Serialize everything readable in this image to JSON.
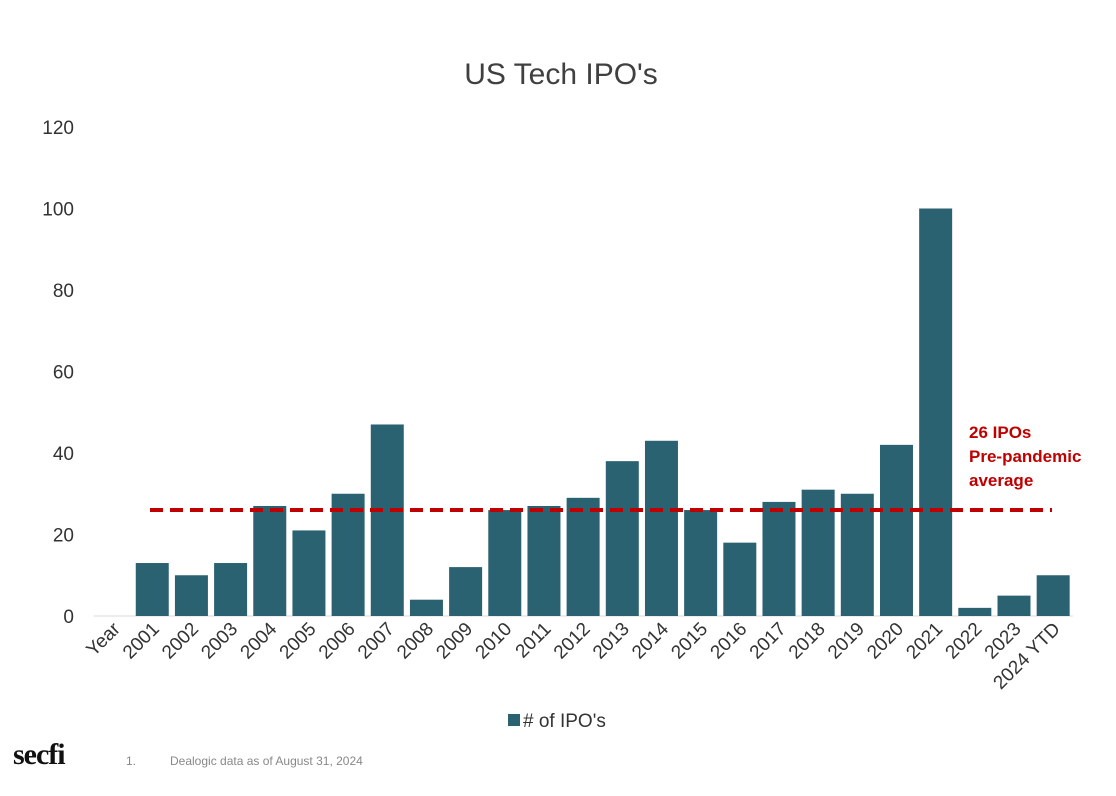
{
  "chart_data": {
    "type": "bar",
    "title": "US Tech IPO's",
    "categories": [
      "Year",
      "2001",
      "2002",
      "2003",
      "2004",
      "2005",
      "2006",
      "2007",
      "2008",
      "2009",
      "2010",
      "2011",
      "2012",
      "2013",
      "2014",
      "2015",
      "2016",
      "2017",
      "2018",
      "2019",
      "2020",
      "2021",
      "2022",
      "2023",
      "2024 YTD"
    ],
    "series": [
      {
        "name": "# of IPO's",
        "values": [
          null,
          13,
          10,
          13,
          27,
          21,
          30,
          47,
          4,
          12,
          26,
          27,
          29,
          38,
          43,
          26,
          18,
          28,
          31,
          30,
          42,
          100,
          2,
          5,
          10
        ],
        "color": "#2b6272"
      }
    ],
    "ylim": [
      0,
      120
    ],
    "yticks": [
      0,
      20,
      40,
      60,
      80,
      100,
      120
    ],
    "grid": false,
    "legend": "bottom",
    "reference_line": {
      "value": 26,
      "style": "dashed",
      "color": "#c00000",
      "label_lines": [
        "26 IPOs",
        "Pre-pandemic",
        "average"
      ]
    }
  },
  "footer": {
    "logo": "secfi",
    "footnote_number": "1.",
    "footnote_text": "Dealogic data as of August 31, 2024"
  }
}
